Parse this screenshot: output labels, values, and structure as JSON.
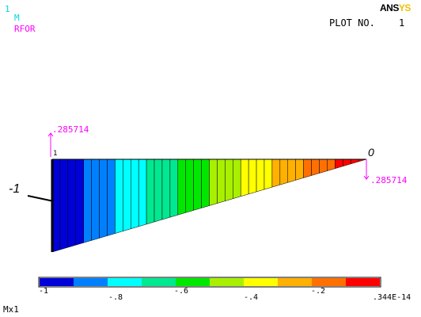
{
  "window": {
    "number": "1",
    "result_label": "M",
    "symbol_label": "RFOR",
    "plot_label": "PLOT NO.",
    "plot_number": "1",
    "logo": {
      "part1": "ANS",
      "part2": "YS"
    }
  },
  "diagram": {
    "left_value": "-1",
    "right_value": "0",
    "reaction_top_value": ".285714",
    "reaction_right_value": ".285714",
    "node_label": "1",
    "mode_label": "Mx1",
    "segment_count": 40,
    "min": -1,
    "max": 3.44e-15
  },
  "legend": {
    "labels_bottom": [
      "-1",
      "-.6",
      "-.2"
    ],
    "labels_top": [
      "-.8",
      "-.4",
      ".344E-14"
    ],
    "colors": [
      "#0000d8",
      "#0080ff",
      "#00ffff",
      "#00e890",
      "#00e800",
      "#a8f000",
      "#ffff00",
      "#ffb000",
      "#ff7000",
      "#ff0000"
    ]
  },
  "colors": {
    "window_number": "#00d8d8",
    "result_label": "#00d8d8",
    "symbol_label": "#ff00ff",
    "reaction_arrow": "#ff00ff",
    "text": "#000000"
  }
}
